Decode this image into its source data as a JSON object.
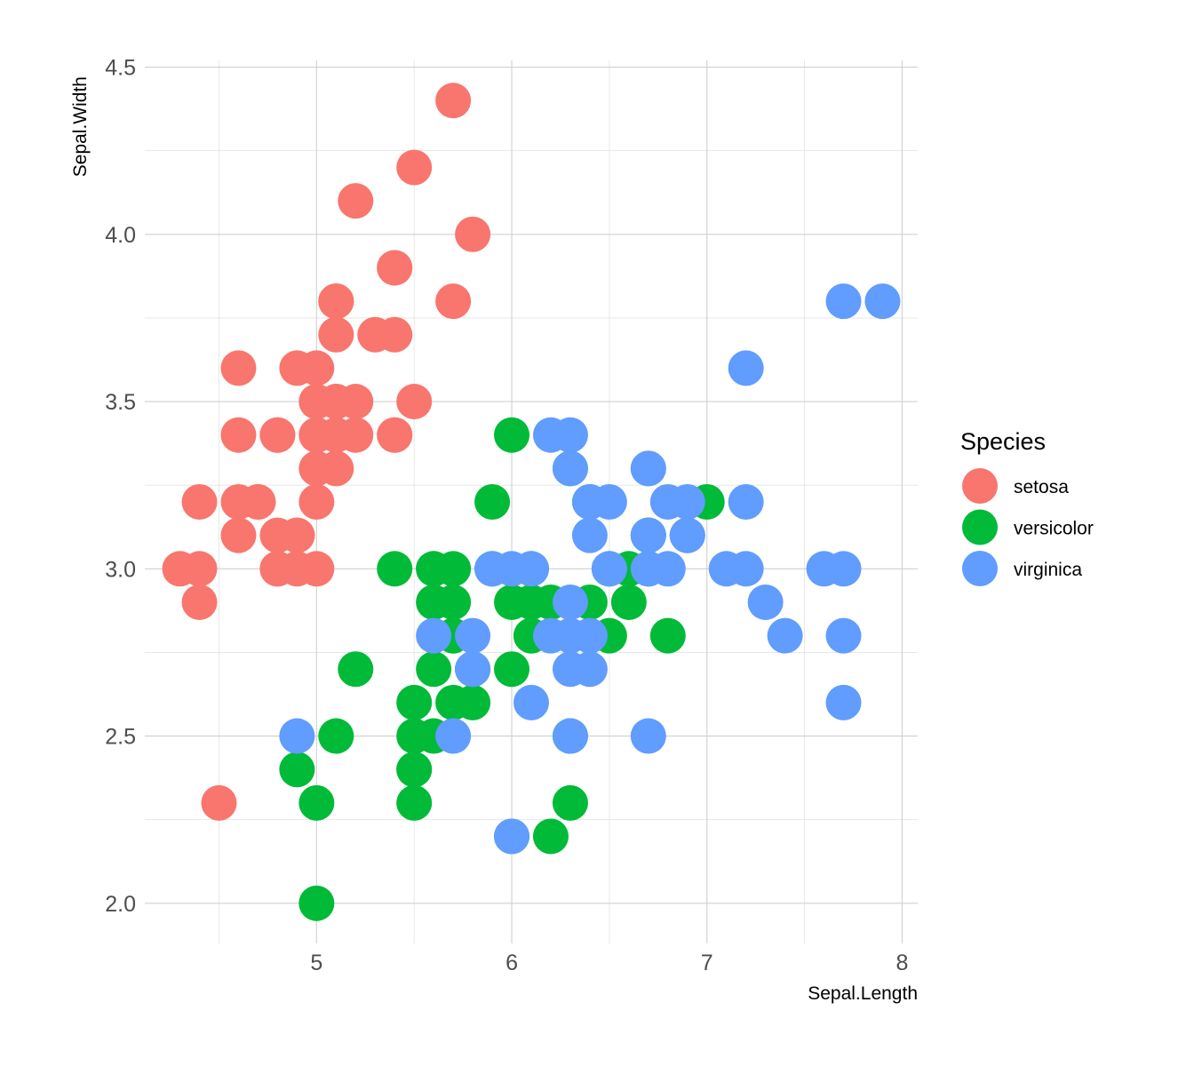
{
  "chart_data": {
    "type": "scatter",
    "xlabel": "Sepal.Length",
    "ylabel": "Sepal.Width",
    "xlim": [
      4.12,
      8.08
    ],
    "ylim": [
      1.88,
      4.52
    ],
    "x_ticks": [
      5,
      6,
      7,
      8
    ],
    "x_tick_labels": [
      "5",
      "6",
      "7",
      "8"
    ],
    "y_ticks": [
      2.0,
      2.5,
      3.0,
      3.5,
      4.0,
      4.5
    ],
    "y_tick_labels": [
      "2.0",
      "2.5",
      "3.0",
      "3.5",
      "4.0",
      "4.5"
    ],
    "x_minor_ticks": [
      4.5,
      5.5,
      6.5,
      7.5
    ],
    "y_minor_ticks": [
      2.25,
      2.75,
      3.25,
      3.75,
      4.25
    ],
    "grid": true,
    "legend": {
      "title": "Species",
      "placement": "right"
    },
    "series": [
      {
        "name": "setosa",
        "color": "#F8766D",
        "x": [
          5.1,
          4.9,
          4.7,
          4.6,
          5.0,
          5.4,
          4.6,
          5.0,
          4.4,
          4.9,
          5.4,
          4.8,
          4.8,
          4.3,
          5.8,
          5.7,
          5.4,
          5.1,
          5.7,
          5.1,
          5.4,
          5.1,
          4.6,
          5.1,
          4.8,
          5.0,
          5.0,
          5.2,
          5.2,
          4.7,
          4.8,
          5.4,
          5.2,
          5.5,
          4.9,
          5.0,
          5.5,
          4.9,
          4.4,
          5.1,
          5.0,
          4.5,
          4.4,
          5.0,
          5.1,
          4.8,
          5.1,
          4.6,
          5.3,
          5.0
        ],
        "y": [
          3.5,
          3.0,
          3.2,
          3.1,
          3.6,
          3.9,
          3.4,
          3.4,
          2.9,
          3.1,
          3.7,
          3.4,
          3.0,
          3.0,
          4.0,
          4.4,
          3.9,
          3.5,
          3.8,
          3.8,
          3.4,
          3.7,
          3.6,
          3.3,
          3.4,
          3.0,
          3.4,
          3.5,
          3.4,
          3.2,
          3.1,
          3.4,
          4.1,
          4.2,
          3.1,
          3.2,
          3.5,
          3.6,
          3.0,
          3.4,
          3.5,
          2.3,
          3.2,
          3.5,
          3.8,
          3.0,
          3.8,
          3.2,
          3.7,
          3.3
        ]
      },
      {
        "name": "versicolor",
        "color": "#00BA38",
        "x": [
          7.0,
          6.4,
          6.9,
          5.5,
          6.5,
          5.7,
          6.3,
          4.9,
          6.6,
          5.2,
          5.0,
          5.9,
          6.0,
          6.1,
          5.6,
          6.7,
          5.6,
          5.8,
          6.2,
          5.6,
          5.9,
          6.1,
          6.3,
          6.1,
          6.4,
          6.6,
          6.8,
          6.7,
          6.0,
          5.7,
          5.5,
          5.5,
          5.8,
          6.0,
          5.4,
          6.0,
          6.7,
          6.3,
          5.6,
          5.5,
          5.5,
          6.1,
          5.8,
          5.0,
          5.6,
          5.7,
          5.7,
          6.2,
          5.1,
          5.7
        ],
        "y": [
          3.2,
          3.2,
          3.1,
          2.3,
          2.8,
          2.8,
          3.3,
          2.4,
          2.9,
          2.7,
          2.0,
          3.0,
          2.2,
          2.9,
          2.9,
          3.1,
          3.0,
          2.7,
          2.2,
          2.5,
          3.2,
          2.8,
          2.5,
          2.8,
          2.9,
          3.0,
          2.8,
          3.0,
          2.9,
          2.6,
          2.4,
          2.4,
          2.7,
          2.7,
          3.0,
          3.4,
          3.1,
          2.3,
          3.0,
          2.5,
          2.6,
          3.0,
          2.6,
          2.3,
          2.7,
          3.0,
          2.9,
          2.9,
          2.5,
          2.8
        ]
      },
      {
        "name": "virginica",
        "color": "#619CFF",
        "x": [
          6.3,
          5.8,
          7.1,
          6.3,
          6.5,
          7.6,
          4.9,
          7.3,
          6.7,
          7.2,
          6.5,
          6.4,
          6.8,
          5.7,
          5.8,
          6.4,
          6.5,
          7.7,
          7.7,
          6.0,
          6.9,
          5.6,
          7.7,
          6.3,
          6.7,
          7.2,
          6.2,
          6.1,
          6.4,
          7.2,
          7.4,
          7.9,
          6.4,
          6.3,
          6.1,
          7.7,
          6.3,
          6.4,
          6.0,
          6.9,
          6.7,
          6.9,
          5.8,
          6.8,
          6.7,
          6.7,
          6.3,
          6.5,
          6.2,
          5.9
        ],
        "y": [
          3.3,
          2.7,
          3.0,
          2.9,
          3.0,
          3.0,
          2.5,
          2.9,
          2.5,
          3.6,
          3.2,
          2.7,
          3.0,
          2.5,
          2.8,
          3.2,
          3.0,
          3.8,
          2.6,
          2.2,
          3.2,
          2.8,
          2.8,
          2.7,
          3.3,
          3.2,
          2.8,
          3.0,
          2.8,
          3.0,
          2.8,
          3.8,
          2.8,
          2.8,
          2.6,
          3.0,
          3.4,
          3.1,
          3.0,
          3.1,
          3.1,
          3.1,
          2.7,
          3.2,
          3.3,
          3.0,
          2.5,
          3.0,
          3.4,
          3.0
        ]
      }
    ]
  }
}
